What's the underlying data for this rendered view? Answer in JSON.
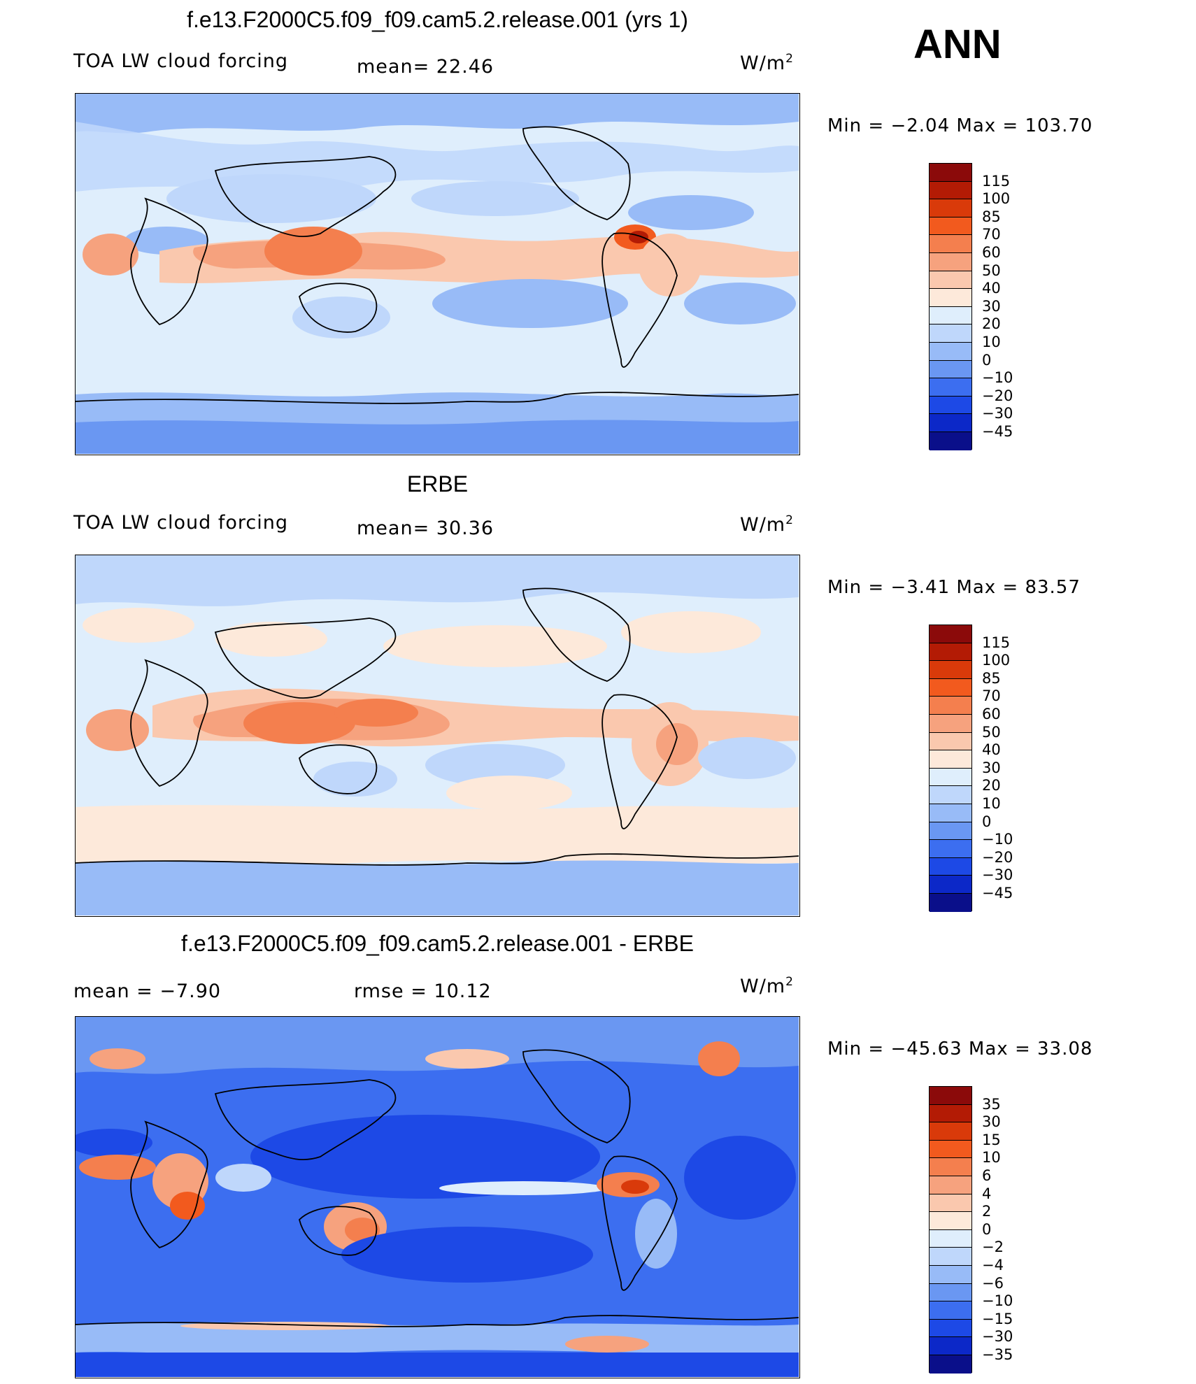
{
  "season": "ANN",
  "panels": [
    {
      "title": "f.e13.F2000C5.f09_f09.cam5.2.release.001 (yrs 1)",
      "left_label": "TOA LW cloud forcing",
      "center_label": "mean=  22.46",
      "units": "W/m",
      "units_sup": "2",
      "stats": "Min  =   −2.04  Max  =  103.70",
      "levels": [
        "115",
        "100",
        "85",
        "70",
        "60",
        "50",
        "40",
        "30",
        "20",
        "10",
        "0",
        "−10",
        "−20",
        "−30",
        "−45"
      ],
      "colors": [
        "#8b0a0a",
        "#b31b05",
        "#d93a0a",
        "#f25a1e",
        "#f47f4e",
        "#f6a27e",
        "#fac8ae",
        "#fde9da",
        "#dfeefc",
        "#bfd7fb",
        "#98bbf7",
        "#6a97f2",
        "#3c6ef0",
        "#1d49e6",
        "#0c28c8",
        "#0a0f8a"
      ]
    },
    {
      "title": "ERBE",
      "left_label": "TOA LW cloud forcing",
      "center_label": "mean=  30.36",
      "units": "W/m",
      "units_sup": "2",
      "stats": "Min  =   −3.41  Max  =   83.57",
      "levels": [
        "115",
        "100",
        "85",
        "70",
        "60",
        "50",
        "40",
        "30",
        "20",
        "10",
        "0",
        "−10",
        "−20",
        "−30",
        "−45"
      ],
      "colors": [
        "#8b0a0a",
        "#b31b05",
        "#d93a0a",
        "#f25a1e",
        "#f47f4e",
        "#f6a27e",
        "#fac8ae",
        "#fde9da",
        "#dfeefc",
        "#bfd7fb",
        "#98bbf7",
        "#6a97f2",
        "#3c6ef0",
        "#1d49e6",
        "#0c28c8",
        "#0a0f8a"
      ]
    },
    {
      "title": "f.e13.F2000C5.f09_f09.cam5.2.release.001 - ERBE",
      "left_label": "mean  =   −7.90",
      "center_label": "rmse  =   10.12",
      "units": "W/m",
      "units_sup": "2",
      "stats": "Min  = −45.63  Max  =   33.08",
      "levels": [
        "35",
        "30",
        "15",
        "10",
        "6",
        "4",
        "2",
        "0",
        "−2",
        "−4",
        "−6",
        "−10",
        "−15",
        "−30",
        "−35"
      ],
      "colors": [
        "#8b0a0a",
        "#b31b05",
        "#d93a0a",
        "#f25a1e",
        "#f47f4e",
        "#f6a27e",
        "#fac8ae",
        "#fde9da",
        "#dfeefc",
        "#bfd7fb",
        "#98bbf7",
        "#6a97f2",
        "#3c6ef0",
        "#1d49e6",
        "#0c28c8",
        "#0a0f8a"
      ]
    }
  ]
}
